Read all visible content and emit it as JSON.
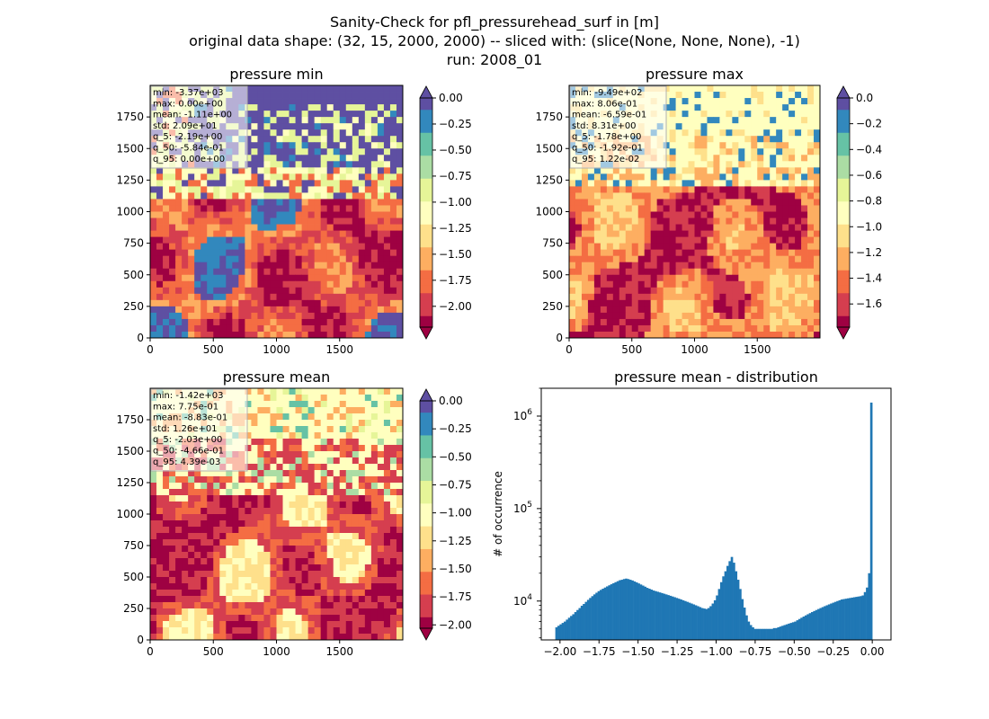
{
  "figure": {
    "title_lines": [
      "Sanity-Check for pfl_pressurehead_surf in [m]",
      "original data shape: (32, 15, 2000, 2000) -- sliced with: (slice(None, None, None), -1)",
      "run: 2008_01"
    ]
  },
  "colors": {
    "spectral": [
      "#9e0142",
      "#d53e4f",
      "#f46d43",
      "#fdae61",
      "#fee08b",
      "#ffffbf",
      "#e6f598",
      "#abdda4",
      "#66c2a5",
      "#3288bd",
      "#5e4fa2"
    ],
    "hist_bar": "#1f77b4",
    "stats_box_bg": "#ffffff",
    "stats_box_border": "#b0b0b0"
  },
  "chart_data": [
    {
      "type": "heatmap",
      "title": "pressure min",
      "xlim": [
        0,
        2000
      ],
      "ylim": [
        0,
        2000
      ],
      "xticks": [
        "0",
        "500",
        "1000",
        "1500"
      ],
      "yticks": [
        "0",
        "250",
        "500",
        "750",
        "1000",
        "1250",
        "1500",
        "1750"
      ],
      "colormap": "Spectral",
      "colorbar": {
        "range": [
          -2.2,
          0.0
        ],
        "ticks": [
          "0.00",
          "−0.25",
          "−0.50",
          "−0.75",
          "−1.00",
          "−1.25",
          "−1.50",
          "−1.75",
          "−2.00"
        ],
        "extend_min": true,
        "extend_max": true
      },
      "stats": [
        "min: -3.37e+03",
        "max: 0.00e+00",
        "mean: -1.11e+00",
        "std: 2.09e+01",
        "q_5: -2.19e+00",
        "q_50: -5.84e-01",
        "q_95: 0.00e+00"
      ]
    },
    {
      "type": "heatmap",
      "title": "pressure max",
      "xlim": [
        0,
        2000
      ],
      "ylim": [
        0,
        2000
      ],
      "xticks": [
        "0",
        "500",
        "1000",
        "1500"
      ],
      "yticks": [
        "0",
        "250",
        "500",
        "750",
        "1000",
        "1250",
        "1500",
        "1750"
      ],
      "colormap": "Spectral",
      "colorbar": {
        "range": [
          -1.78,
          0.0
        ],
        "ticks": [
          "0.0",
          "−0.2",
          "−0.4",
          "−0.6",
          "−0.8",
          "−1.0",
          "−1.2",
          "−1.4",
          "−1.6"
        ],
        "extend_min": true,
        "extend_max": true
      },
      "stats": [
        "min: -9.49e+02",
        "max: 8.06e-01",
        "mean: -6.59e-01",
        "std: 8.31e+00",
        "q_5: -1.78e+00",
        "q_50: -1.92e-01",
        "q_95: 1.22e-02"
      ]
    },
    {
      "type": "heatmap",
      "title": "pressure mean",
      "xlim": [
        0,
        2000
      ],
      "ylim": [
        0,
        2000
      ],
      "xticks": [
        "0",
        "500",
        "1000",
        "1500"
      ],
      "yticks": [
        "0",
        "250",
        "500",
        "750",
        "1000",
        "1250",
        "1500",
        "1750"
      ],
      "colormap": "Spectral",
      "colorbar": {
        "range": [
          -2.03,
          0.0
        ],
        "ticks": [
          "0.00",
          "−0.25",
          "−0.50",
          "−0.75",
          "−1.00",
          "−1.25",
          "−1.50",
          "−1.75",
          "−2.00"
        ],
        "extend_min": true,
        "extend_max": true
      },
      "stats": [
        "min: -1.42e+03",
        "max: 7.75e-01",
        "mean: -8.83e-01",
        "std: 1.26e+01",
        "q_5: -2.03e+00",
        "q_50: -4.66e-01",
        "q_95: 4.39e-03"
      ]
    },
    {
      "type": "bar",
      "title": "pressure mean - distribution",
      "ylabel": "# of occurrence",
      "xlabel": "",
      "yscale": "log",
      "xlim": [
        -2.12,
        0.12
      ],
      "ylim": [
        3800,
        2000000
      ],
      "xticks": [
        -2.0,
        -1.75,
        -1.5,
        -1.25,
        -1.0,
        -0.75,
        -0.5,
        -0.25,
        0.0
      ],
      "xtick_labels": [
        "−2.00",
        "−1.75",
        "−1.50",
        "−1.25",
        "−1.00",
        "−0.75",
        "−0.50",
        "−0.25",
        "0.00"
      ],
      "yticks": [
        10000,
        100000,
        1000000
      ],
      "ytick_labels": [
        [
          "10",
          "4"
        ],
        [
          "10",
          "5"
        ],
        [
          "10",
          "6"
        ]
      ],
      "bin_range": [
        -2.03,
        0.0
      ],
      "bin_count": 150,
      "counts": [
        5200,
        5400,
        5600,
        5800,
        6000,
        6300,
        6600,
        6900,
        7200,
        7600,
        8000,
        8400,
        8900,
        9300,
        9800,
        10300,
        10800,
        11300,
        11800,
        12300,
        12800,
        13200,
        13600,
        14000,
        14400,
        14800,
        15200,
        15600,
        16000,
        16400,
        16800,
        17000,
        17300,
        17500,
        17300,
        17000,
        16700,
        16300,
        15900,
        15500,
        15100,
        14700,
        14300,
        13900,
        13600,
        13300,
        13000,
        12800,
        12600,
        12400,
        12200,
        12000,
        11800,
        11600,
        11400,
        11200,
        11000,
        10800,
        10600,
        10400,
        10200,
        10000,
        9800,
        9600,
        9400,
        9200,
        9000,
        8800,
        8600,
        8400,
        8300,
        8200,
        8400,
        8800,
        9400,
        10200,
        11500,
        13500,
        16000,
        18500,
        21000,
        24000,
        27000,
        30000,
        26000,
        21000,
        17000,
        13500,
        10500,
        8500,
        7000,
        6000,
        5500,
        5200,
        5000,
        5000,
        5000,
        5000,
        5000,
        5000,
        5000,
        5000,
        5000,
        5100,
        5100,
        5200,
        5300,
        5400,
        5500,
        5600,
        5700,
        5800,
        5900,
        6000,
        6200,
        6400,
        6600,
        6800,
        7000,
        7200,
        7400,
        7600,
        7800,
        8000,
        8200,
        8400,
        8600,
        8800,
        9000,
        9200,
        9400,
        9600,
        9800,
        10000,
        10200,
        10400,
        10500,
        10600,
        10700,
        10800,
        10900,
        11000,
        11100,
        11200,
        11300,
        11500,
        12500,
        14000,
        20000,
        1400000
      ]
    }
  ]
}
